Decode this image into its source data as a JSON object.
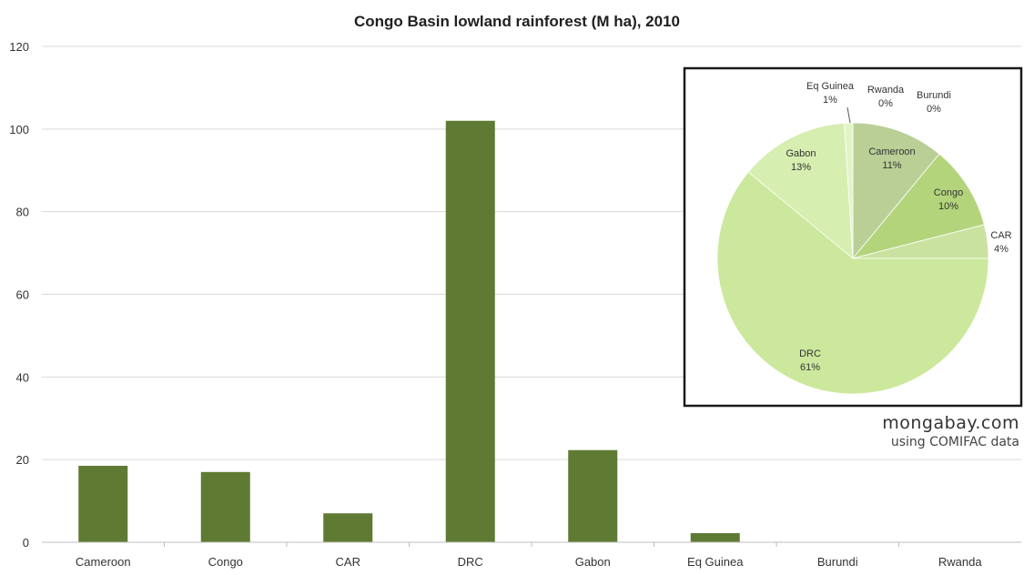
{
  "chart_data": [
    {
      "type": "bar",
      "title": "Congo Basin lowland rainforest (M ha), 2010",
      "categories": [
        "Cameroon",
        "Congo",
        "CAR",
        "DRC",
        "Gabon",
        "Eq Guinea",
        "Burundi",
        "Rwanda"
      ],
      "values": [
        18.5,
        17,
        7,
        102,
        22.3,
        2.2,
        0,
        0
      ],
      "ylim": [
        0,
        120
      ],
      "yticks": [
        "0",
        "20",
        "40",
        "60",
        "80",
        "100",
        "120"
      ],
      "xlabel": "",
      "ylabel": "",
      "grid": true,
      "color": "#5f7a32"
    },
    {
      "type": "pie",
      "slices": [
        {
          "label": "Cameroon",
          "pct_label": "11%",
          "value": 11,
          "color": "#b9cf96"
        },
        {
          "label": "Congo",
          "pct_label": "10%",
          "value": 10,
          "color": "#b4d47c"
        },
        {
          "label": "CAR",
          "pct_label": "4%",
          "value": 4,
          "color": "#c9e2a0"
        },
        {
          "label": "DRC",
          "pct_label": "61%",
          "value": 61,
          "color": "#cbe89c"
        },
        {
          "label": "Gabon",
          "pct_label": "13%",
          "value": 13,
          "color": "#d6eeb0"
        },
        {
          "label": "Eq Guinea",
          "pct_label": "1%",
          "value": 1,
          "color": "#e3f4c8"
        },
        {
          "label": "Rwanda",
          "pct_label": "0%",
          "value": 0,
          "color": "#e3f4c8"
        },
        {
          "label": "Burundi",
          "pct_label": "0%",
          "value": 0,
          "color": "#e3f4c8"
        }
      ]
    }
  ],
  "credit": {
    "site": "mongabay.com",
    "source": "using COMIFAC data"
  }
}
